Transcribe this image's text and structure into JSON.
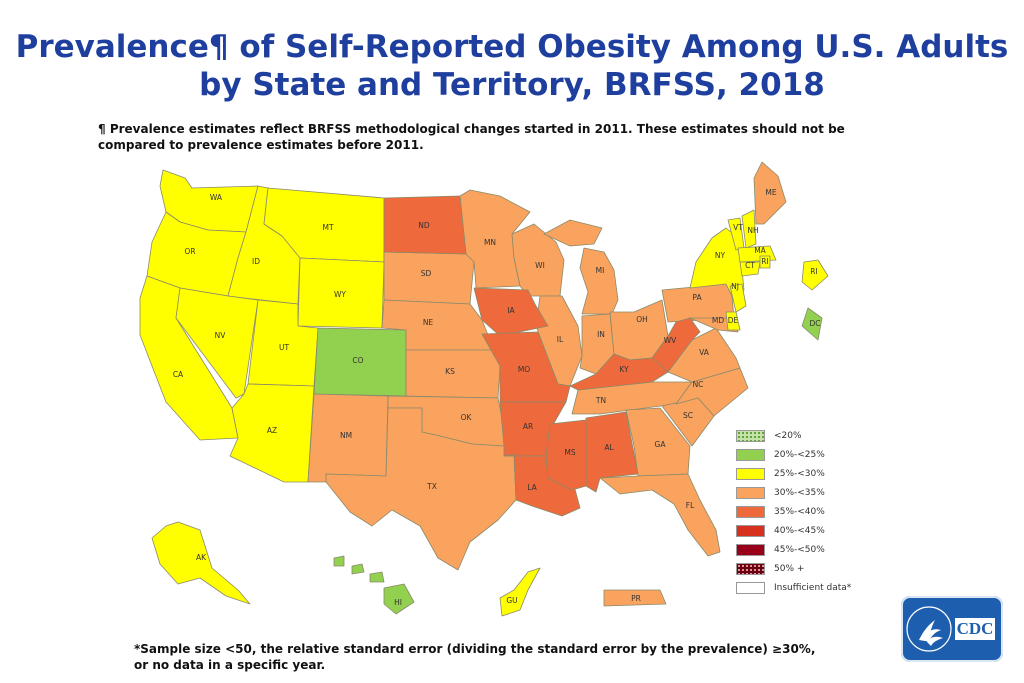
{
  "title": {
    "line1": "Prevalence¶ of Self-Reported Obesity Among U.S. Adults",
    "line2": "by State and Territory, BRFSS, 2018"
  },
  "footnote": {
    "line1": "¶ Prevalence estimates reflect BRFSS methodological changes started in 2011. These estimates should not be",
    "line2": "compared to prevalence estimates before 2011."
  },
  "colors": {
    "lt20": "#c4e3a6",
    "c20_25": "#92d050",
    "c25_30": "#ffff00",
    "c30_35": "#f9a35f",
    "c35_40": "#ee6a3c",
    "c40_45": "#d7301f",
    "c45_50": "#99001a",
    "c50p": "#6b0010",
    "insufficient": "#ffffff"
  },
  "legend": {
    "items": [
      {
        "label": "<20%",
        "color": "#c4e3a6"
      },
      {
        "label": "20%-<25%",
        "color": "#92d050"
      },
      {
        "label": "25%-<30%",
        "color": "#ffff00"
      },
      {
        "label": "30%-<35%",
        "color": "#f9a35f"
      },
      {
        "label": "35%-<40%",
        "color": "#ee6a3c"
      },
      {
        "label": "40%-<45%",
        "color": "#d7301f"
      },
      {
        "label": "45%-<50%",
        "color": "#99001a"
      },
      {
        "label": "50% +",
        "color": "#6b0010"
      },
      {
        "label": "Insufficient data*",
        "color": "#ffffff"
      }
    ]
  },
  "states": {
    "WA": "WA",
    "OR": "OR",
    "CA": "CA",
    "ID": "ID",
    "NV": "NV",
    "MT": "MT",
    "WY": "WY",
    "UT": "UT",
    "AZ": "AZ",
    "CO": "CO",
    "NM": "NM",
    "ND": "ND",
    "SD": "SD",
    "NE": "NE",
    "KS": "KS",
    "OK": "OK",
    "TX": "TX",
    "MN": "MN",
    "IA": "IA",
    "MO": "MO",
    "AR": "AR",
    "LA": "LA",
    "WI": "WI",
    "IL": "IL",
    "MI": "MI",
    "IN": "IN",
    "OH": "OH",
    "KY": "KY",
    "TN": "TN",
    "MS": "MS",
    "AL": "AL",
    "GA": "GA",
    "FL": "FL",
    "SC": "SC",
    "NC": "NC",
    "VA": "VA",
    "WV": "WV",
    "PA": "PA",
    "NY": "NY",
    "MD": "MD",
    "DE": "DE",
    "NJ": "NJ",
    "CT": "CT",
    "RI": "RI",
    "MA": "MA",
    "VT": "VT",
    "NH": "NH",
    "ME": "ME",
    "DC": "DC",
    "AK": "AK",
    "HI": "HI",
    "GU": "GU",
    "PR": "PR",
    "RI_box": "RI"
  },
  "sample_note": {
    "line1": "*Sample size <50, the relative standard error (dividing the standard error by the prevalence) ≥30%,",
    "line2": "or no data in a specific year."
  },
  "logo": {
    "text": "CDC"
  }
}
